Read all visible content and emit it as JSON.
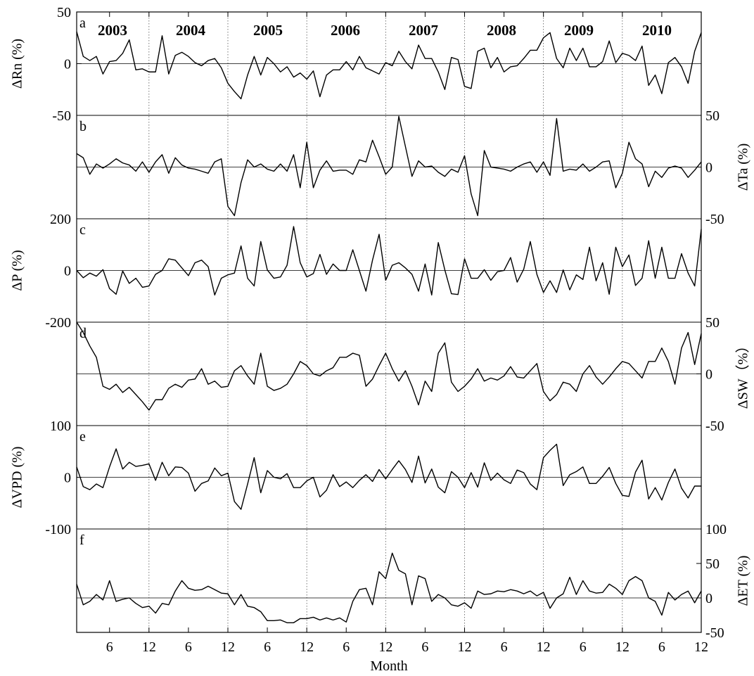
{
  "figure": {
    "xlabel": "Month",
    "year_labels": [
      "2003",
      "2004",
      "2005",
      "2006",
      "2007",
      "2008",
      "2009",
      "2010"
    ],
    "month_tick_labels": [
      "6",
      "12",
      "6",
      "12",
      "6",
      "12",
      "6",
      "12",
      "6",
      "12",
      "6",
      "12",
      "6",
      "12",
      "6",
      "12"
    ]
  },
  "chart_data": [
    {
      "type": "line",
      "panel": "a",
      "ylabel": "ΔRn (%)",
      "axis_side": "left",
      "ylim": [
        -50,
        50
      ],
      "tick_values": [
        50,
        0,
        -50
      ],
      "tick_labels": [
        "50",
        "0",
        "-50"
      ],
      "x": "months 1-96 (Jan 2003 - Dec 2010)",
      "values": [
        31,
        7,
        3,
        7,
        -10,
        2,
        3,
        10,
        23,
        -6,
        -5,
        -8,
        -8,
        27,
        -10,
        8,
        11,
        7,
        1,
        -2,
        3,
        5,
        -4,
        -19,
        -27,
        -34,
        -11,
        7,
        -11,
        6,
        0,
        -8,
        -3,
        -13,
        -9,
        -15,
        -7,
        -32,
        -11,
        -6,
        -6,
        2,
        -6,
        7,
        -4,
        -7,
        -10,
        1,
        -2,
        12,
        2,
        -5,
        18,
        5,
        5,
        -8,
        -25,
        6,
        4,
        -22,
        -24,
        12,
        15,
        -4,
        6,
        -8,
        -3,
        -2,
        5,
        13,
        13,
        25,
        30,
        5,
        -4,
        15,
        3,
        15,
        -3,
        -3,
        2,
        22,
        1,
        10,
        8,
        3,
        17,
        -21,
        -11,
        -29,
        1,
        6,
        -3,
        -19,
        12,
        30
      ]
    },
    {
      "type": "line",
      "panel": "b",
      "ylabel": "ΔTa (%)",
      "axis_side": "right",
      "ylim": [
        -50,
        50
      ],
      "tick_values": [
        50,
        0,
        -50
      ],
      "tick_labels": [
        "50",
        "0",
        "-50"
      ],
      "x": "months 1-96 (Jan 2003 - Dec 2010)",
      "values": [
        13,
        9,
        -7,
        3,
        -1,
        3,
        8,
        4,
        2,
        -4,
        5,
        -5,
        5,
        12,
        -6,
        9,
        2,
        -1,
        -2,
        -4,
        -6,
        5,
        8,
        -38,
        -47,
        -15,
        7,
        0,
        3,
        -2,
        -4,
        3,
        -4,
        12,
        -20,
        24,
        -20,
        -3,
        6,
        -4,
        -3,
        -3,
        -7,
        7,
        5,
        26,
        10,
        -7,
        0,
        49,
        20,
        -9,
        6,
        0,
        1,
        -5,
        -9,
        -2,
        -5,
        11,
        -26,
        -47,
        16,
        0,
        -1,
        -2,
        -4,
        0,
        3,
        5,
        -5,
        5,
        -8,
        47,
        -4,
        -2,
        -3,
        3,
        -4,
        0,
        5,
        6,
        -20,
        -6,
        24,
        8,
        3,
        -19,
        -4,
        -10,
        -1,
        1,
        -1,
        -10,
        -3,
        5
      ]
    },
    {
      "type": "line",
      "panel": "c",
      "ylabel": "ΔP (%)",
      "axis_side": "left",
      "ylim": [
        -200,
        200
      ],
      "tick_values": [
        200,
        0,
        -200
      ],
      "tick_labels": [
        "200",
        "0",
        "-200"
      ],
      "x": "months 1-96 (Jan 2003 - Dec 2010)",
      "values": [
        0,
        -28,
        -10,
        -22,
        3,
        -70,
        -92,
        -2,
        -50,
        -30,
        -65,
        -60,
        -15,
        0,
        45,
        40,
        10,
        -20,
        30,
        40,
        15,
        -95,
        -30,
        -17,
        -10,
        95,
        -30,
        -60,
        112,
        2,
        -30,
        -25,
        20,
        170,
        30,
        -25,
        -12,
        62,
        -15,
        25,
        0,
        0,
        80,
        0,
        -80,
        40,
        140,
        -38,
        20,
        30,
        10,
        -15,
        -80,
        25,
        -95,
        108,
        2,
        -90,
        -93,
        45,
        -30,
        -30,
        3,
        -38,
        -5,
        0,
        50,
        -45,
        5,
        112,
        -15,
        -85,
        -40,
        -85,
        2,
        -75,
        -17,
        -35,
        90,
        -40,
        30,
        -92,
        90,
        15,
        60,
        -58,
        -30,
        115,
        -30,
        90,
        -30,
        -30,
        65,
        -10,
        -60,
        160
      ]
    },
    {
      "type": "line",
      "panel": "d",
      "ylabel": "ΔSW（%）",
      "axis_side": "right",
      "ylim": [
        -50,
        50
      ],
      "tick_values": [
        50,
        0,
        -50
      ],
      "tick_labels": [
        "50",
        "0",
        "-50"
      ],
      "x": "months 1-96 (Jan 2003 - Dec 2010)",
      "values": [
        50,
        40,
        27,
        16,
        -12,
        -15,
        -10,
        -18,
        -13,
        -20,
        -27,
        -35,
        -25,
        -25,
        -14,
        -10,
        -13,
        -6,
        -5,
        5,
        -10,
        -7,
        -13,
        -12,
        3,
        8,
        -2,
        -10,
        20,
        -12,
        -16,
        -14,
        -10,
        0,
        12,
        8,
        0,
        -2,
        3,
        6,
        16,
        16,
        20,
        18,
        -12,
        -5,
        8,
        20,
        5,
        -7,
        3,
        -12,
        -30,
        -7,
        -17,
        20,
        30,
        -8,
        -17,
        -12,
        -5,
        5,
        -7,
        -4,
        -6,
        -2,
        7,
        -3,
        -4,
        3,
        10,
        -17,
        -26,
        -20,
        -8,
        -10,
        -17,
        0,
        8,
        -3,
        -10,
        -3,
        5,
        12,
        10,
        3,
        -4,
        12,
        12,
        25,
        12,
        -10,
        25,
        40,
        9,
        39
      ]
    },
    {
      "type": "line",
      "panel": "e",
      "ylabel": "ΔVPD (%)",
      "axis_side": "left",
      "ylim": [
        -100,
        100
      ],
      "tick_values": [
        100,
        0,
        -100
      ],
      "tick_labels": [
        "100",
        "0",
        "-100"
      ],
      "x": "months 1-96 (Jan 2003 - Dec 2010)",
      "values": [
        20,
        -18,
        -24,
        -13,
        -20,
        20,
        55,
        16,
        29,
        21,
        23,
        26,
        -6,
        29,
        3,
        20,
        19,
        8,
        -27,
        -12,
        -7,
        18,
        3,
        8,
        -47,
        -62,
        -13,
        38,
        -30,
        13,
        0,
        -3,
        7,
        -20,
        -20,
        -7,
        0,
        -38,
        -25,
        5,
        -18,
        -9,
        -20,
        -6,
        5,
        -8,
        15,
        -3,
        15,
        32,
        15,
        -10,
        41,
        -11,
        16,
        -19,
        -30,
        11,
        0,
        -20,
        9,
        -19,
        28,
        -6,
        8,
        -5,
        -12,
        14,
        9,
        -13,
        -24,
        38,
        52,
        64,
        -16,
        5,
        11,
        20,
        -12,
        -12,
        2,
        19,
        -12,
        -35,
        -37,
        10,
        33,
        -42,
        -20,
        -44,
        -10,
        16,
        -21,
        -40,
        -17,
        -17
      ]
    },
    {
      "type": "line",
      "panel": "f",
      "ylabel": "ΔET (%)",
      "axis_side": "right",
      "ylim": [
        -50,
        100
      ],
      "tick_values": [
        100,
        50,
        0,
        -50
      ],
      "tick_labels": [
        "100",
        "50",
        "0",
        "-50"
      ],
      "x": "months 1-96 (Jan 2003 - Dec 2010)",
      "values": [
        20,
        -10,
        -5,
        5,
        -3,
        25,
        -5,
        -2,
        0,
        -8,
        -14,
        -12,
        -22,
        -8,
        -10,
        10,
        25,
        14,
        11,
        12,
        17,
        12,
        7,
        6,
        -10,
        5,
        -12,
        -14,
        -20,
        -33,
        -33,
        -32,
        -36,
        -36,
        -30,
        -30,
        -28,
        -32,
        -29,
        -32,
        -29,
        -35,
        -5,
        12,
        14,
        -10,
        38,
        28,
        65,
        40,
        35,
        -10,
        32,
        28,
        -5,
        5,
        0,
        -10,
        -12,
        -7,
        -15,
        10,
        5,
        6,
        10,
        9,
        12,
        10,
        6,
        10,
        3,
        8,
        -15,
        0,
        6,
        30,
        5,
        25,
        10,
        7,
        8,
        20,
        14,
        5,
        25,
        31,
        25,
        0,
        -5,
        -25,
        8,
        -3,
        5,
        10,
        -7,
        10
      ]
    }
  ]
}
